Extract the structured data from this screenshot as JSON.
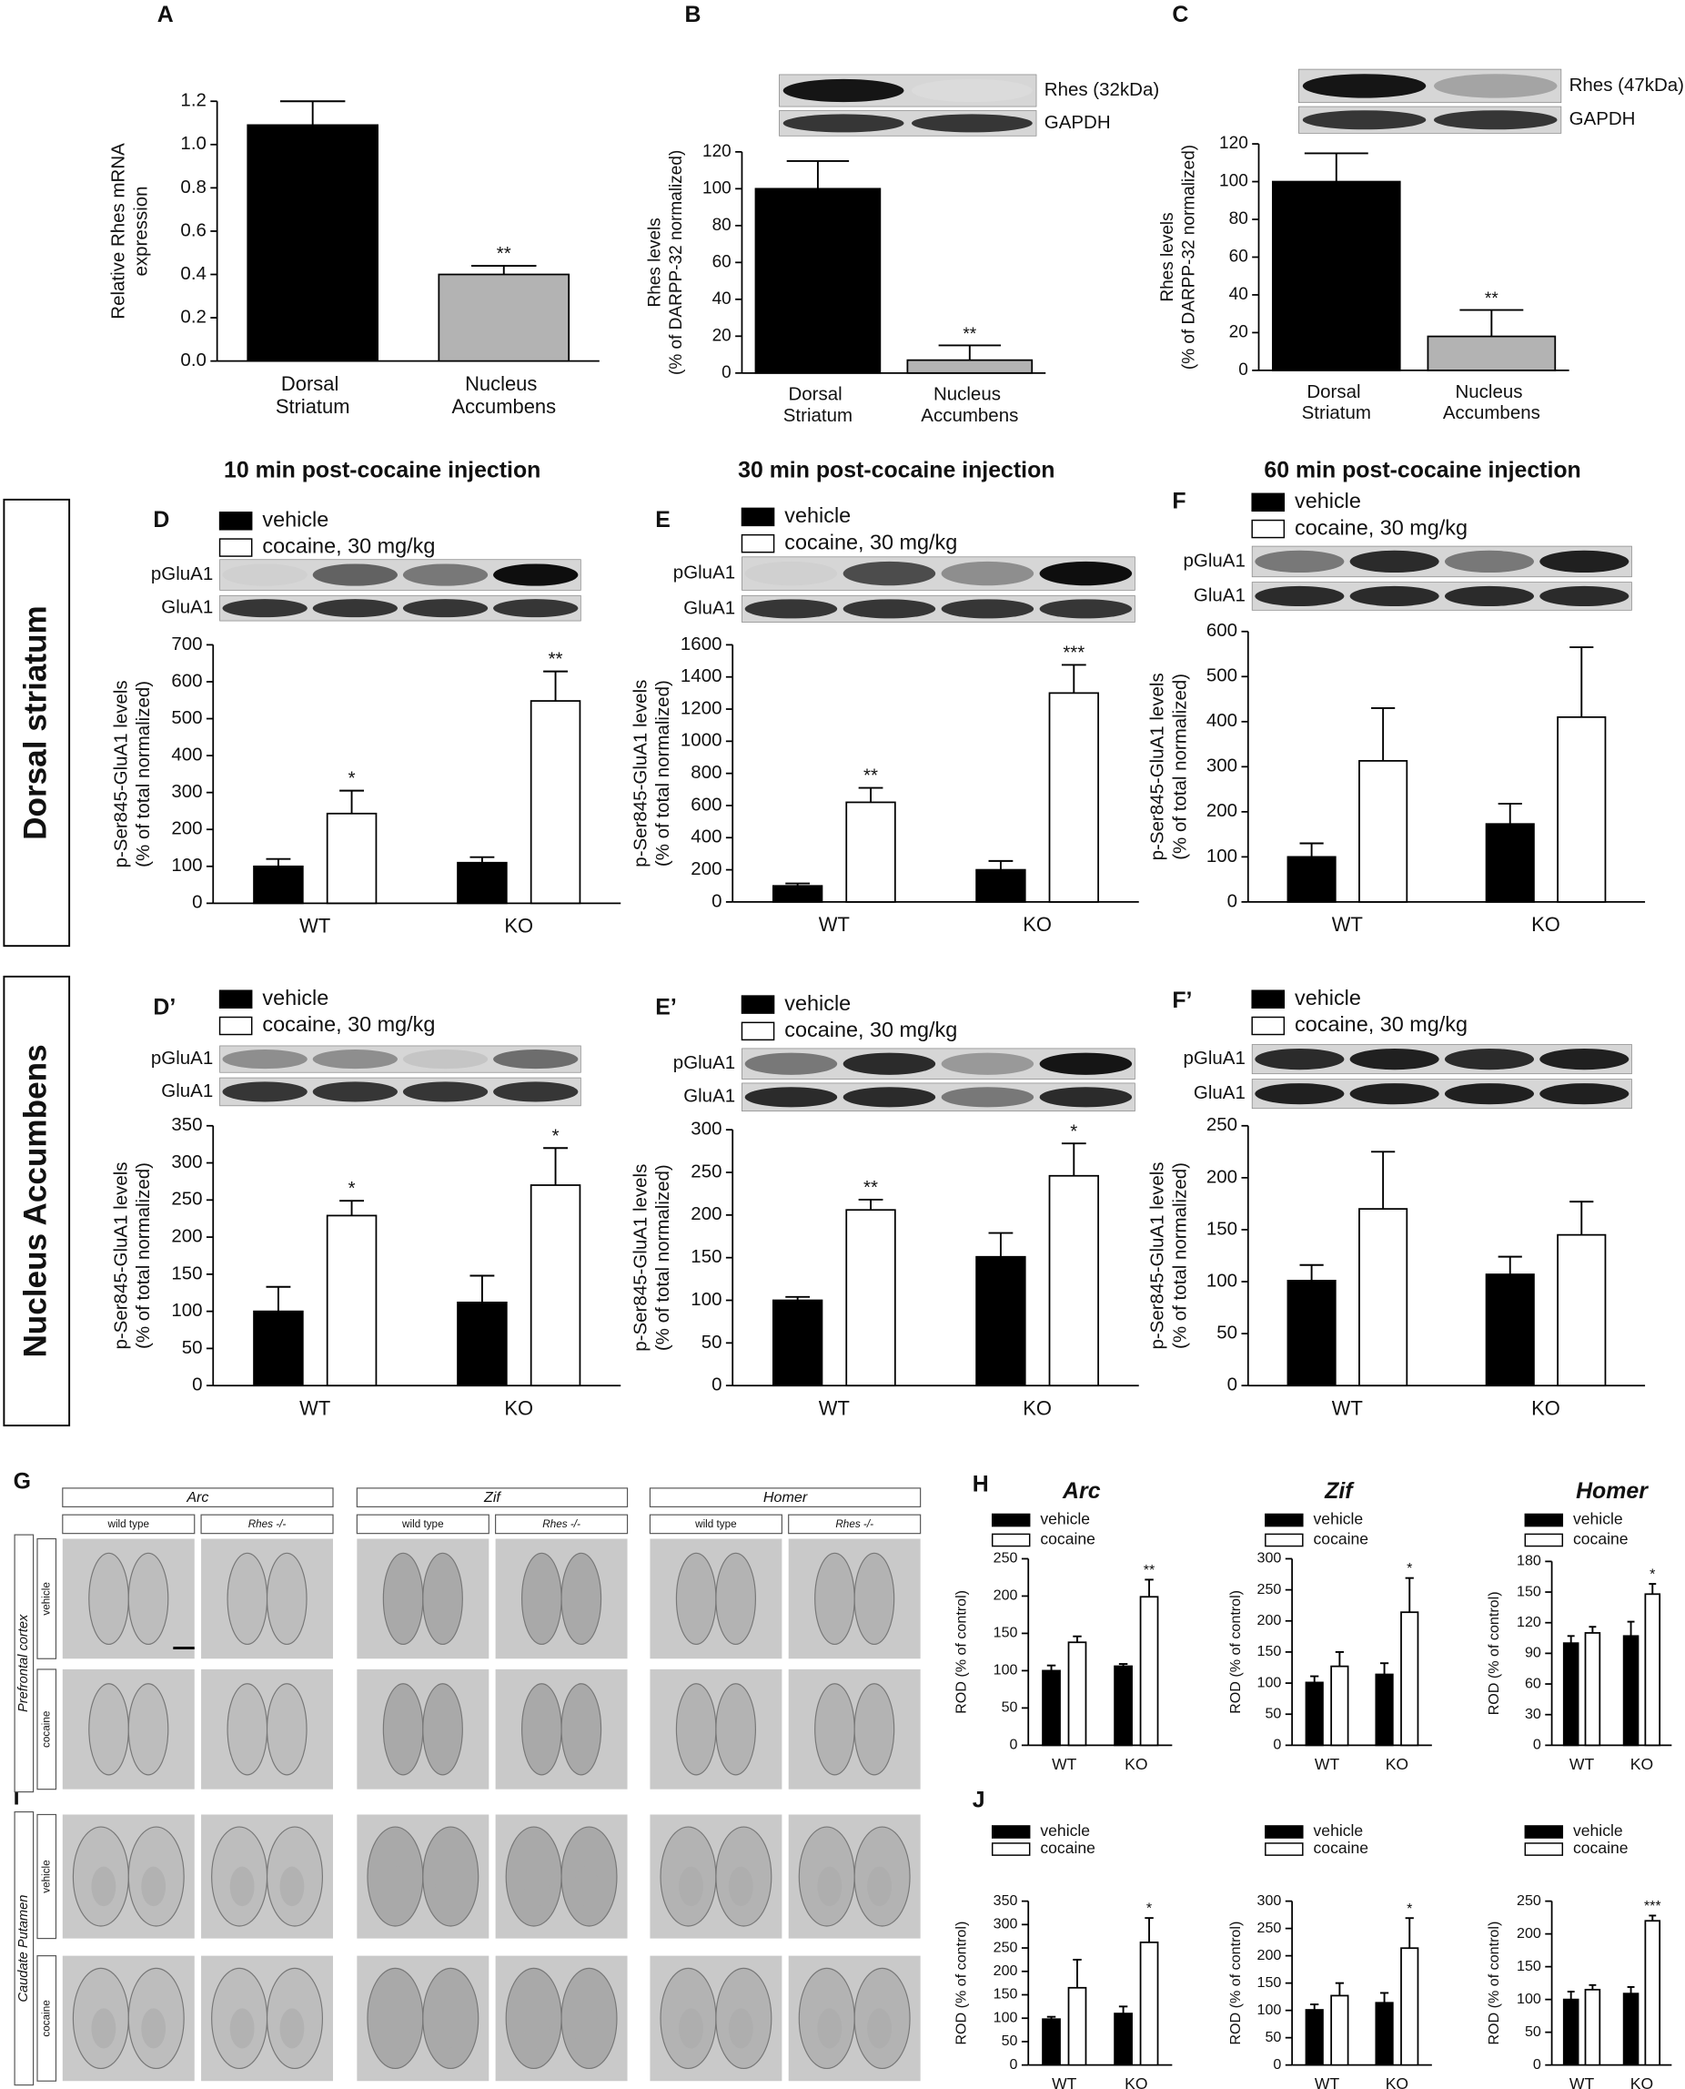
{
  "chart_data": [
    {
      "type": "bar",
      "label": "A",
      "ylabel": [
        "Relative Rhes mRNA",
        "expression"
      ],
      "categories": [
        "Dorsal Striatum",
        "Nucleus Accumbens"
      ],
      "values": [
        1.09,
        0.4
      ],
      "errors": [
        0.11,
        0.04
      ],
      "colors": [
        "#000000",
        "#b3b3b3"
      ],
      "annotations": [
        null,
        "**"
      ],
      "ylim": [
        0,
        1.2
      ],
      "yticks": [
        {
          "value": 0,
          "label": "0.0"
        },
        0.2,
        0.4,
        0.6,
        0.8,
        {
          "value": 1,
          "label": "1.0"
        },
        1.2
      ]
    },
    {
      "type": "bar",
      "label": "B",
      "ylabel": [
        "Rhes levels",
        "(% of DARPP-32 normalized)"
      ],
      "blot_labels": [
        "Rhes (32kDa)",
        "GAPDH"
      ],
      "categories": [
        "Dorsal Striatum",
        "Nucleus Accumbens"
      ],
      "values": [
        100,
        7
      ],
      "errors": [
        15,
        8
      ],
      "colors": [
        "#000000",
        "#b3b3b3"
      ],
      "annotations": [
        null,
        "**"
      ],
      "ylim": [
        0,
        120
      ],
      "yticks": [
        0,
        20,
        40,
        60,
        80,
        100,
        120
      ]
    },
    {
      "type": "bar",
      "label": "C",
      "ylabel": [
        "Rhes levels",
        "(% of DARPP-32 normalized)"
      ],
      "blot_labels": [
        "Rhes (47kDa)",
        "GAPDH"
      ],
      "categories": [
        "Dorsal Striatum",
        "Nucleus Accumbens"
      ],
      "values": [
        100,
        18
      ],
      "errors": [
        15,
        14
      ],
      "colors": [
        "#000000",
        "#b3b3b3"
      ],
      "annotations": [
        null,
        "**"
      ],
      "ylim": [
        0,
        120
      ],
      "yticks": [
        0,
        20,
        40,
        60,
        80,
        100,
        120
      ]
    },
    {
      "type": "bar",
      "label": "D",
      "ylabel": [
        "p-Ser845-GluA1 levels",
        "(% of total normalized)"
      ],
      "blot_labels": [
        "pGluA1",
        "GluA1"
      ],
      "categories": [
        "WT",
        "KO"
      ],
      "series": [
        {
          "name": "vehicle",
          "color": "#000000",
          "values": [
            100,
            110
          ],
          "errors": [
            20,
            15
          ],
          "annotations": [
            null,
            null
          ]
        },
        {
          "name": "cocaine, 30 mg/kg",
          "color": "#ffffff",
          "values": [
            243,
            548
          ],
          "errors": [
            62,
            80
          ],
          "annotations": [
            "*",
            "**"
          ]
        }
      ],
      "ylim": [
        0,
        700
      ],
      "yticks": [
        0,
        100,
        200,
        300,
        400,
        500,
        600,
        700
      ]
    },
    {
      "type": "bar",
      "label": "E",
      "ylabel": [
        "p-Ser845-GluA1 levels",
        "(% of total normalized)"
      ],
      "blot_labels": [
        "pGluA1",
        "GluA1"
      ],
      "categories": [
        "WT",
        "KO"
      ],
      "series": [
        {
          "name": "vehicle",
          "color": "#000000",
          "values": [
            100,
            200
          ],
          "errors": [
            15,
            55
          ],
          "annotations": [
            null,
            null
          ]
        },
        {
          "name": "cocaine, 30 mg/kg",
          "color": "#ffffff",
          "values": [
            620,
            1300
          ],
          "errors": [
            90,
            175
          ],
          "annotations": [
            "**",
            "***"
          ]
        }
      ],
      "ylim": [
        0,
        1600
      ],
      "yticks": [
        0,
        200,
        400,
        600,
        800,
        1000,
        1200,
        1400,
        1600
      ]
    },
    {
      "type": "bar",
      "label": "F",
      "ylabel": [
        "p-Ser845-GluA1 levels",
        "(% of total normalized)"
      ],
      "blot_labels": [
        "pGluA1",
        "GluA1"
      ],
      "categories": [
        "WT",
        "KO"
      ],
      "series": [
        {
          "name": "vehicle",
          "color": "#000000",
          "values": [
            100,
            173
          ],
          "errors": [
            30,
            45
          ],
          "annotations": [
            null,
            null
          ]
        },
        {
          "name": "cocaine, 30 mg/kg",
          "color": "#ffffff",
          "values": [
            313,
            410
          ],
          "errors": [
            117,
            155
          ],
          "annotations": [
            null,
            null
          ]
        }
      ],
      "ylim": [
        0,
        600
      ],
      "yticks": [
        0,
        100,
        200,
        300,
        400,
        500,
        600
      ]
    },
    {
      "type": "bar",
      "label": "D’",
      "ylabel": [
        "p-Ser845-GluA1 levels",
        "(% of total normalized)"
      ],
      "blot_labels": [
        "pGluA1",
        "GluA1"
      ],
      "categories": [
        "WT",
        "KO"
      ],
      "series": [
        {
          "name": "vehicle",
          "color": "#000000",
          "values": [
            100,
            112
          ],
          "errors": [
            33,
            36
          ],
          "annotations": [
            null,
            null
          ]
        },
        {
          "name": "cocaine, 30 mg/kg",
          "color": "#ffffff",
          "values": [
            229,
            270
          ],
          "errors": [
            20,
            50
          ],
          "annotations": [
            "*",
            "*"
          ]
        }
      ],
      "ylim": [
        0,
        350
      ],
      "yticks": [
        0,
        50,
        100,
        150,
        200,
        250,
        300,
        350
      ]
    },
    {
      "type": "bar",
      "label": "E’",
      "ylabel": [
        "p-Ser845-GluA1 levels",
        "(% of total normalized)"
      ],
      "blot_labels": [
        "pGluA1",
        "GluA1"
      ],
      "categories": [
        "WT",
        "KO"
      ],
      "series": [
        {
          "name": "vehicle",
          "color": "#000000",
          "values": [
            100,
            151
          ],
          "errors": [
            4,
            28
          ],
          "annotations": [
            null,
            null
          ]
        },
        {
          "name": "cocaine, 30 mg/kg",
          "color": "#ffffff",
          "values": [
            206,
            246
          ],
          "errors": [
            12,
            38
          ],
          "annotations": [
            "**",
            "*"
          ]
        }
      ],
      "ylim": [
        0,
        300
      ],
      "yticks": [
        0,
        50,
        100,
        150,
        200,
        250,
        300
      ]
    },
    {
      "type": "bar",
      "label": "F’",
      "ylabel": [
        "p-Ser845-GluA1 levels",
        "(% of total normalized)"
      ],
      "blot_labels": [
        "pGluA1",
        "GluA1"
      ],
      "categories": [
        "WT",
        "KO"
      ],
      "series": [
        {
          "name": "vehicle",
          "color": "#000000",
          "values": [
            101,
            107
          ],
          "errors": [
            15,
            17
          ],
          "annotations": [
            null,
            null
          ]
        },
        {
          "name": "cocaine, 30 mg/kg",
          "color": "#ffffff",
          "values": [
            170,
            145
          ],
          "errors": [
            55,
            32
          ],
          "annotations": [
            null,
            null
          ]
        }
      ],
      "ylim": [
        0,
        250
      ],
      "yticks": [
        0,
        50,
        100,
        150,
        200,
        250
      ]
    },
    {
      "type": "bar",
      "label": "H",
      "title": "Arc",
      "ylabel": [
        "ROD (% of control)"
      ],
      "categories": [
        "WT",
        "KO"
      ],
      "series": [
        {
          "name": "vehicle",
          "color": "#000000",
          "values": [
            100,
            106
          ],
          "errors": [
            7,
            3
          ],
          "annotations": [
            null,
            null
          ]
        },
        {
          "name": "cocaine",
          "color": "#ffffff",
          "values": [
            138,
            199
          ],
          "errors": [
            8,
            23
          ],
          "annotations": [
            null,
            "**"
          ]
        }
      ],
      "ylim": [
        0,
        250
      ],
      "yticks": [
        0,
        50,
        100,
        150,
        200,
        250
      ]
    },
    {
      "type": "bar",
      "title": "Zif",
      "ylabel": [
        "ROD (% of control)"
      ],
      "categories": [
        "WT",
        "KO"
      ],
      "series": [
        {
          "name": "vehicle",
          "color": "#000000",
          "values": [
            101,
            114
          ],
          "errors": [
            10,
            18
          ],
          "annotations": [
            null,
            null
          ]
        },
        {
          "name": "cocaine",
          "color": "#ffffff",
          "values": [
            127,
            214
          ],
          "errors": [
            23,
            55
          ],
          "annotations": [
            null,
            "*"
          ]
        }
      ],
      "ylim": [
        0,
        300
      ],
      "yticks": [
        0,
        50,
        100,
        150,
        200,
        250,
        300
      ]
    },
    {
      "type": "bar",
      "title": "Homer",
      "ylabel": [
        "ROD (% of control)"
      ],
      "categories": [
        "WT",
        "KO"
      ],
      "series": [
        {
          "name": "vehicle",
          "color": "#000000",
          "values": [
            100,
            107
          ],
          "errors": [
            7,
            14
          ],
          "annotations": [
            null,
            null
          ]
        },
        {
          "name": "cocaine",
          "color": "#ffffff",
          "values": [
            110,
            148
          ],
          "errors": [
            6,
            10
          ],
          "annotations": [
            null,
            "*"
          ]
        }
      ],
      "ylim": [
        0,
        180
      ],
      "yticks": [
        0,
        30,
        60,
        90,
        120,
        150,
        180
      ]
    },
    {
      "type": "bar",
      "label": "J",
      "ylabel": [
        "ROD (% of control)"
      ],
      "categories": [
        "WT",
        "KO"
      ],
      "series": [
        {
          "name": "vehicle",
          "color": "#000000",
          "values": [
            98,
            110
          ],
          "errors": [
            5,
            15
          ],
          "annotations": [
            null,
            null
          ]
        },
        {
          "name": "cocaine",
          "color": "#ffffff",
          "values": [
            165,
            262
          ],
          "errors": [
            60,
            52
          ],
          "annotations": [
            null,
            "*"
          ]
        }
      ],
      "ylim": [
        0,
        350
      ],
      "yticks": [
        0,
        50,
        100,
        150,
        200,
        250,
        300,
        350
      ]
    },
    {
      "type": "bar",
      "ylabel": [
        "ROD (% of control)"
      ],
      "categories": [
        "WT",
        "KO"
      ],
      "series": [
        {
          "name": "vehicle",
          "color": "#000000",
          "values": [
            101,
            114
          ],
          "errors": [
            10,
            18
          ],
          "annotations": [
            null,
            null
          ]
        },
        {
          "name": "cocaine",
          "color": "#ffffff",
          "values": [
            127,
            214
          ],
          "errors": [
            23,
            55
          ],
          "annotations": [
            null,
            "*"
          ]
        }
      ],
      "ylim": [
        0,
        300
      ],
      "yticks": [
        0,
        50,
        100,
        150,
        200,
        250,
        300
      ]
    },
    {
      "type": "bar",
      "ylabel": [
        "ROD (% of control)"
      ],
      "categories": [
        "WT",
        "KO"
      ],
      "series": [
        {
          "name": "vehicle",
          "color": "#000000",
          "values": [
            100,
            109
          ],
          "errors": [
            12,
            10
          ],
          "annotations": [
            null,
            null
          ]
        },
        {
          "name": "cocaine",
          "color": "#ffffff",
          "values": [
            115,
            220
          ],
          "errors": [
            7,
            8
          ],
          "annotations": [
            null,
            "***"
          ]
        }
      ],
      "ylim": [
        0,
        250
      ],
      "yticks": [
        0,
        50,
        100,
        150,
        200,
        250
      ]
    }
  ],
  "figure": {
    "column_titles": [
      "10 min post-cocaine injection",
      "30 min post-cocaine injection",
      "60 min post-cocaine injection"
    ],
    "row_titles": [
      "Dorsal striatum",
      "Nucleus Accumbens"
    ],
    "G": {
      "label": "G",
      "genes": [
        "Arc",
        "Zif",
        "Homer"
      ],
      "genotypes": [
        "wild type",
        "Rhes -/-"
      ],
      "treatments": [
        "vehicle",
        "cocaine"
      ],
      "region": "Prefrontal cortex"
    },
    "I": {
      "label": "I",
      "treatments": [
        "vehicle",
        "cocaine"
      ],
      "region": "Caudate Putamen"
    }
  }
}
